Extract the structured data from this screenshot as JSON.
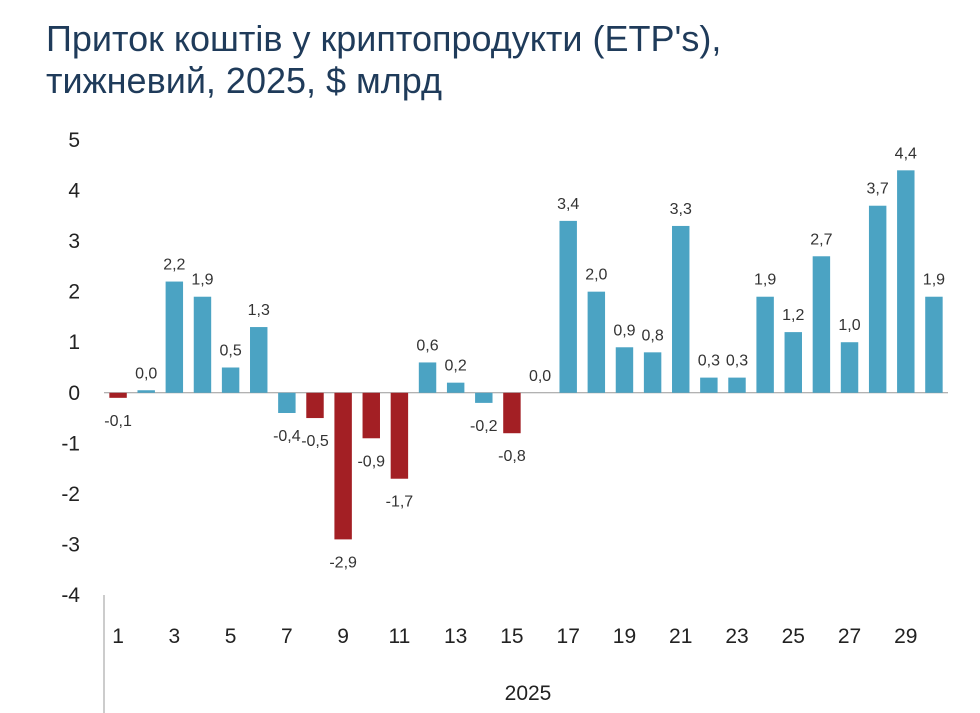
{
  "title_line1": "Приток коштів у криптопродукти (ETP's),",
  "title_line2": "тижневий, 2025, $ млрд",
  "chart_data": {
    "type": "bar",
    "categories": [
      1,
      2,
      3,
      4,
      5,
      6,
      7,
      8,
      9,
      10,
      11,
      12,
      13,
      14,
      15,
      16,
      17,
      18,
      19,
      20,
      21,
      22,
      23,
      24,
      25,
      26,
      27,
      28,
      29,
      30
    ],
    "x_tick_labels": [
      "1",
      "3",
      "5",
      "7",
      "9",
      "11",
      "13",
      "15",
      "17",
      "19",
      "21",
      "23",
      "25",
      "27",
      "29"
    ],
    "x_group_label": "2025",
    "values": [
      -0.1,
      0.05,
      2.2,
      1.9,
      0.5,
      1.3,
      -0.4,
      -0.5,
      -2.9,
      -0.9,
      -1.7,
      0.6,
      0.2,
      -0.2,
      -0.8,
      0.0,
      3.4,
      2.0,
      0.9,
      0.8,
      3.3,
      0.3,
      0.3,
      1.9,
      1.2,
      2.7,
      1.0,
      3.7,
      4.4,
      1.9
    ],
    "data_labels": [
      "-0,1",
      "0,0",
      "2,2",
      "1,9",
      "0,5",
      "1,3",
      "-0,4",
      "-0,5",
      "-2,9",
      "-0,9",
      "-1,7",
      "0,6",
      "0,2",
      "-0,2",
      "-0,8",
      "0,0",
      "3,4",
      "2,0",
      "0,9",
      "0,8",
      "3,3",
      "0,3",
      "0,3",
      "1,9",
      "1,2",
      "2,7",
      "1,0",
      "3,7",
      "4,4",
      "1,9"
    ],
    "highlight_negative": [
      true,
      false,
      false,
      false,
      false,
      false,
      false,
      true,
      true,
      true,
      true,
      false,
      false,
      false,
      true,
      false,
      false,
      false,
      false,
      false,
      false,
      false,
      false,
      false,
      false,
      false,
      false,
      false,
      false,
      false
    ],
    "y_ticks": [
      "5",
      "4",
      "3",
      "2",
      "1",
      "0",
      "-1",
      "-2",
      "-3",
      "-4"
    ],
    "ylim": [
      -4,
      5
    ],
    "colors": {
      "bar": "#4ba3c3",
      "negative_highlight": "#a31f24",
      "axis": "#999999"
    }
  }
}
